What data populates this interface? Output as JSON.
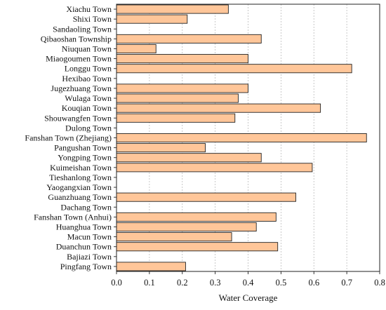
{
  "chart_data": {
    "type": "bar",
    "orientation": "horizontal",
    "categories": [
      "Xiachu Town",
      "Shixi Town",
      "Sandaoling Town",
      "Qibaoshan Township",
      "Niuquan Town",
      "Miaogoumen Town",
      "Longgu Town",
      "Hexibao Town",
      "Jugezhuang Town",
      "Wulaga Town",
      "Kouqian Town",
      "Shouwangfen Town",
      "Dulong Town",
      "Fanshan Town (Zhejiang)",
      "Pangushan Town",
      "Yongping Town",
      "Kuimeishan Town",
      "Tieshanlong Town",
      "Yaogangxian Town",
      "Guanzhuang Town",
      "Dachang Town",
      "Fanshan Town (Anhui)",
      "Huanghua Town",
      "Macun Town",
      "Duanchun Town",
      "Bajiazi Town",
      "Pingfang Town"
    ],
    "values": [
      0.34,
      0.215,
      0,
      0.44,
      0.12,
      0.4,
      0.715,
      0,
      0.4,
      0.37,
      0.62,
      0.36,
      0,
      0.76,
      0.27,
      0.44,
      0.595,
      0,
      0,
      0.545,
      0,
      0.485,
      0.425,
      0.35,
      0.49,
      0,
      0.21
    ],
    "xlabel": "Water Coverage",
    "ylabel": "",
    "xlim": [
      0,
      0.8
    ],
    "xticks": [
      "0.0",
      "0.1",
      "0.2",
      "0.3",
      "0.4",
      "0.5",
      "0.6",
      "0.7",
      "0.8"
    ],
    "grid": "vertical dashed",
    "bar_color": "#FFC699",
    "bar_edge_color": "#222222"
  }
}
